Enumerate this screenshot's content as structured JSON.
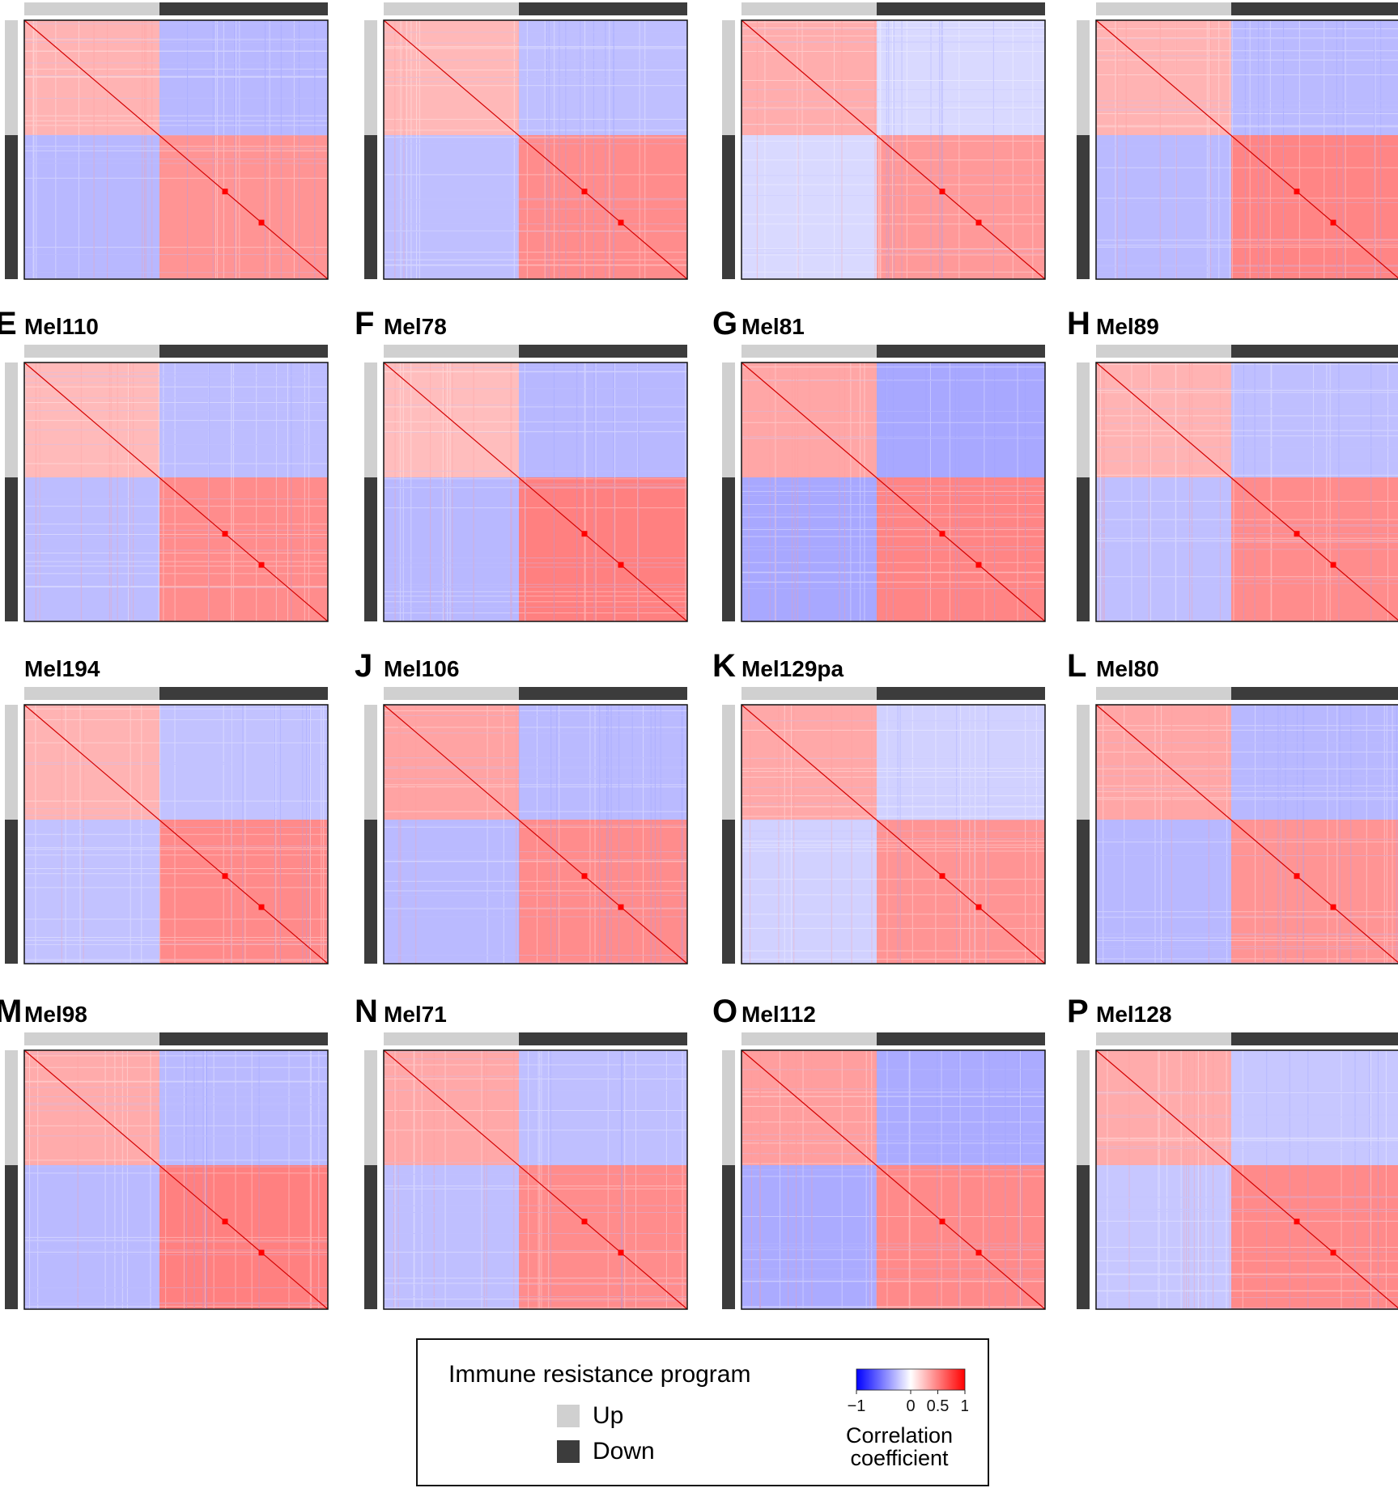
{
  "chart_data": {
    "type": "heatmap",
    "description_source": "grid of gene-gene correlation heatmaps, one per tumor",
    "annotation_groups": [
      {
        "label": "Up",
        "color": "#d0d0d0"
      },
      {
        "label": "Down",
        "color": "#3c3c3c"
      }
    ],
    "up_fraction": 0.445,
    "colorbar": {
      "range": [
        -1,
        1
      ],
      "ticks": [
        "−1",
        "0",
        "0.5",
        "1"
      ],
      "tick_values": [
        -1,
        0,
        0.5,
        1
      ],
      "colors": [
        "#0000ff",
        "#ffffff",
        "#ff0000"
      ]
    },
    "panels": [
      {
        "letter": "",
        "name": "",
        "offdiag": -0.28,
        "up_block": 0.3,
        "down_block": 0.42
      },
      {
        "letter": "",
        "name": "",
        "offdiag": -0.25,
        "up_block": 0.28,
        "down_block": 0.45
      },
      {
        "letter": "",
        "name": "",
        "offdiag": -0.15,
        "up_block": 0.32,
        "down_block": 0.4
      },
      {
        "letter": "",
        "name": "",
        "offdiag": -0.27,
        "up_block": 0.3,
        "down_block": 0.48
      },
      {
        "letter": "E",
        "name": "Mel110",
        "offdiag": -0.26,
        "up_block": 0.27,
        "down_block": 0.45
      },
      {
        "letter": "F",
        "name": "Mel78",
        "offdiag": -0.28,
        "up_block": 0.26,
        "down_block": 0.5
      },
      {
        "letter": "G",
        "name": "Mel81",
        "offdiag": -0.34,
        "up_block": 0.35,
        "down_block": 0.48
      },
      {
        "letter": "H",
        "name": "Mel89",
        "offdiag": -0.25,
        "up_block": 0.3,
        "down_block": 0.45
      },
      {
        "letter": "",
        "name": "Mel194",
        "offdiag": -0.24,
        "up_block": 0.3,
        "down_block": 0.46
      },
      {
        "letter": "J",
        "name": "Mel106",
        "offdiag": -0.27,
        "up_block": 0.36,
        "down_block": 0.45
      },
      {
        "letter": "K",
        "name": "Mel129pa",
        "offdiag": -0.18,
        "up_block": 0.34,
        "down_block": 0.42
      },
      {
        "letter": "L",
        "name": "Mel80",
        "offdiag": -0.28,
        "up_block": 0.35,
        "down_block": 0.42
      },
      {
        "letter": "M",
        "name": "Mel98",
        "offdiag": -0.27,
        "up_block": 0.33,
        "down_block": 0.5
      },
      {
        "letter": "N",
        "name": "Mel71",
        "offdiag": -0.25,
        "up_block": 0.34,
        "down_block": 0.45
      },
      {
        "letter": "O",
        "name": "Mel112",
        "offdiag": -0.33,
        "up_block": 0.38,
        "down_block": 0.46
      },
      {
        "letter": "P",
        "name": "Mel128",
        "offdiag": -0.22,
        "up_block": 0.33,
        "down_block": 0.46
      }
    ]
  },
  "legend": {
    "title": "Immune resistance program",
    "up_label": "Up",
    "down_label": "Down",
    "colorbar_title_line1": "Correlation",
    "colorbar_title_line2": "coefficient"
  }
}
